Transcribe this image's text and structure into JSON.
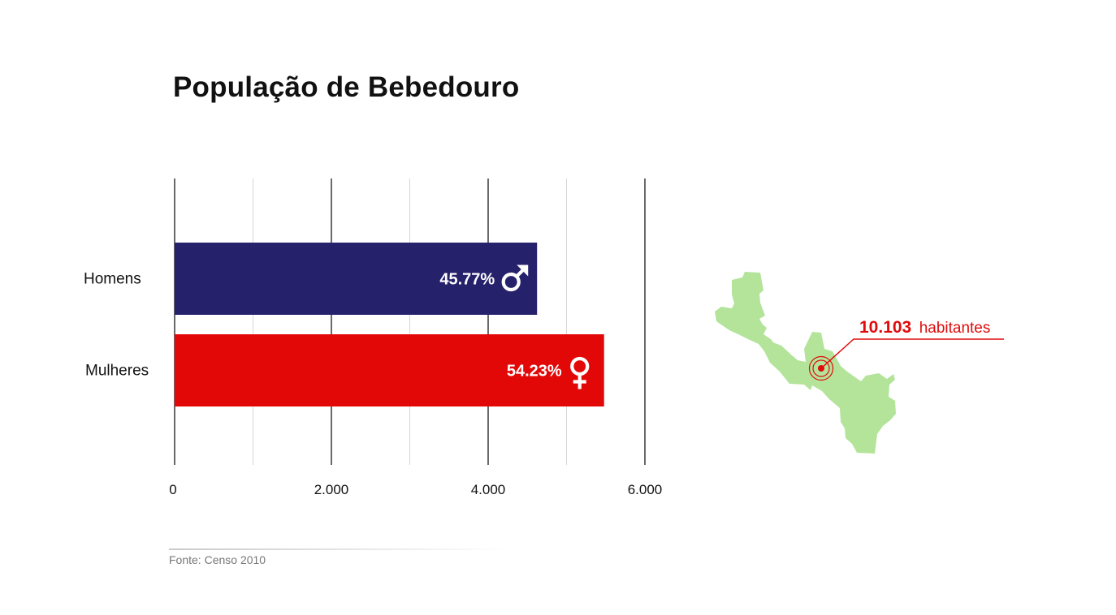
{
  "colors": {
    "homens": "#26216b",
    "mulheres": "#e30808",
    "map_fill": "#b3e49a",
    "callout": "#e00b0b",
    "grid_major": "#1a1a1a",
    "grid_minor": "#d7d7d7"
  },
  "chart_data": {
    "type": "bar",
    "orientation": "horizontal",
    "title": "População de Bebedouro",
    "categories": [
      "Homens",
      "Mulheres"
    ],
    "values": [
      4624,
      5479
    ],
    "value_labels": [
      "45.77%",
      "54.23%"
    ],
    "icons": [
      "male-symbol-icon",
      "female-symbol-icon"
    ],
    "xlim": [
      0,
      6000
    ],
    "major_ticks": [
      0,
      2000,
      4000,
      6000
    ],
    "minor_ticks": [
      1000,
      3000,
      5000
    ],
    "tick_labels": [
      "0",
      "2.000",
      "4.000",
      "6.000"
    ],
    "xlabel": "",
    "ylabel": "",
    "grid": true,
    "legend": "none"
  },
  "map": {
    "icon": "bebedouro-map-icon",
    "callout_value": "10.103",
    "callout_text": "habitantes"
  },
  "source": "Fonte: Censo 2010"
}
